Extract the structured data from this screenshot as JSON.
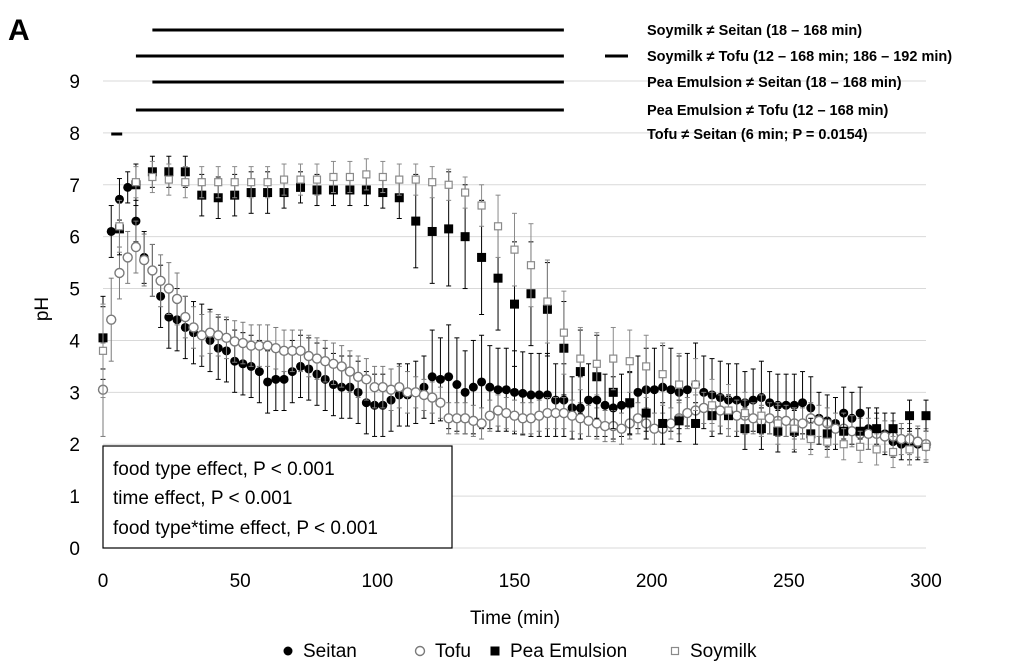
{
  "chart_data": {
    "type": "scatter",
    "panel_label": "A",
    "xlabel": "Time (min)",
    "ylabel": "pH",
    "xlim": [
      0,
      300
    ],
    "ylim": [
      0,
      9
    ],
    "x_ticks": [
      0,
      50,
      100,
      150,
      200,
      250,
      300
    ],
    "y_ticks": [
      0,
      1,
      2,
      3,
      4,
      5,
      6,
      7,
      8,
      9
    ],
    "grid": "horizontal",
    "legend_position": "bottom",
    "colors": {
      "seitan": "#000000",
      "tofu": "#7a7a7a",
      "pea": "#000000",
      "soymilk": "#8a8a8a",
      "grid": "#d9d9d9"
    },
    "series": [
      {
        "name": "Seitan",
        "marker": "filled-circle",
        "x": [
          0,
          3,
          6,
          9,
          12,
          15,
          18,
          21,
          24,
          27,
          30,
          33,
          36,
          39,
          42,
          45,
          48,
          51,
          54,
          57,
          60,
          63,
          66,
          69,
          72,
          75,
          78,
          81,
          84,
          87,
          90,
          93,
          96,
          99,
          102,
          105,
          108,
          111,
          114,
          117,
          120,
          123,
          126,
          129,
          132,
          135,
          138,
          141,
          144,
          147,
          150,
          153,
          156,
          159,
          162,
          165,
          168,
          171,
          174,
          177,
          180,
          183,
          186,
          189,
          192,
          195,
          198,
          201,
          204,
          207,
          210,
          213,
          216,
          219,
          222,
          225,
          228,
          231,
          234,
          237,
          240,
          243,
          246,
          249,
          252,
          255,
          258,
          261,
          264,
          267,
          270,
          273,
          276,
          279,
          282,
          285,
          288,
          291,
          294,
          297,
          300
        ],
        "y": [
          4.05,
          6.1,
          6.72,
          6.95,
          6.3,
          5.6,
          5.35,
          4.85,
          4.45,
          4.4,
          4.25,
          4.15,
          4.1,
          4.0,
          3.85,
          3.8,
          3.6,
          3.55,
          3.5,
          3.4,
          3.2,
          3.25,
          3.25,
          3.4,
          3.5,
          3.45,
          3.35,
          3.25,
          3.15,
          3.1,
          3.1,
          3.0,
          2.8,
          2.75,
          2.75,
          2.85,
          2.95,
          2.95,
          3.0,
          3.1,
          3.3,
          3.25,
          3.3,
          3.15,
          3.0,
          3.1,
          3.2,
          3.1,
          3.05,
          3.05,
          3.0,
          2.98,
          2.95,
          2.95,
          2.95,
          2.85,
          2.85,
          2.7,
          2.7,
          2.85,
          2.85,
          2.75,
          2.7,
          2.75,
          2.78,
          3.0,
          3.05,
          3.05,
          3.1,
          3.05,
          3.0,
          3.05,
          3.15,
          3.0,
          2.95,
          2.9,
          2.85,
          2.85,
          2.8,
          2.85,
          2.9,
          2.8,
          2.75,
          2.75,
          2.75,
          2.8,
          2.7,
          2.5,
          2.45,
          2.4,
          2.6,
          2.5,
          2.6,
          2.3,
          2.3,
          2.2,
          2.05,
          2.0,
          2.0,
          2.0,
          1.95
        ],
        "err": [
          0.6,
          0.5,
          0.4,
          0.3,
          0.4,
          0.5,
          0.5,
          0.6,
          0.6,
          0.6,
          0.6,
          0.6,
          0.6,
          0.6,
          0.6,
          0.6,
          0.6,
          0.6,
          0.6,
          0.6,
          0.6,
          0.6,
          0.6,
          0.6,
          0.6,
          0.6,
          0.6,
          0.6,
          0.6,
          0.6,
          0.6,
          0.6,
          0.6,
          0.6,
          0.6,
          0.6,
          0.6,
          0.6,
          0.6,
          0.6,
          0.9,
          0.8,
          1.0,
          0.9,
          0.8,
          0.9,
          0.9,
          0.8,
          0.8,
          0.8,
          0.8,
          0.8,
          0.8,
          0.8,
          0.8,
          0.7,
          0.7,
          0.6,
          0.6,
          0.7,
          0.7,
          0.6,
          0.6,
          0.6,
          0.6,
          0.7,
          0.8,
          0.8,
          0.8,
          0.8,
          0.7,
          0.7,
          0.8,
          0.7,
          0.7,
          0.7,
          0.7,
          0.7,
          0.6,
          0.6,
          0.7,
          0.6,
          0.6,
          0.6,
          0.6,
          0.6,
          0.6,
          0.5,
          0.5,
          0.5,
          0.5,
          0.5,
          0.5,
          0.4,
          0.4,
          0.4,
          0.3,
          0.3,
          0.3,
          0.3,
          0.3
        ]
      },
      {
        "name": "Tofu",
        "marker": "open-circle",
        "x": [
          0,
          3,
          6,
          9,
          12,
          15,
          18,
          21,
          24,
          27,
          30,
          33,
          36,
          39,
          42,
          45,
          48,
          51,
          54,
          57,
          60,
          63,
          66,
          69,
          72,
          75,
          78,
          81,
          84,
          87,
          90,
          93,
          96,
          99,
          102,
          105,
          108,
          111,
          114,
          117,
          120,
          123,
          126,
          129,
          132,
          135,
          138,
          141,
          144,
          147,
          150,
          153,
          156,
          159,
          162,
          165,
          168,
          171,
          174,
          177,
          180,
          183,
          186,
          189,
          192,
          195,
          198,
          201,
          204,
          207,
          210,
          213,
          216,
          219,
          222,
          225,
          228,
          231,
          234,
          237,
          240,
          243,
          246,
          249,
          252,
          255,
          258,
          261,
          264,
          267,
          270,
          273,
          276,
          279,
          282,
          285,
          288,
          291,
          294,
          297,
          300
        ],
        "y": [
          3.05,
          4.4,
          5.3,
          5.6,
          5.8,
          5.55,
          5.35,
          5.15,
          5.0,
          4.8,
          4.45,
          4.25,
          4.1,
          4.15,
          4.1,
          4.05,
          3.98,
          3.95,
          3.9,
          3.9,
          3.9,
          3.85,
          3.8,
          3.8,
          3.8,
          3.7,
          3.65,
          3.6,
          3.55,
          3.5,
          3.4,
          3.3,
          3.25,
          3.1,
          3.1,
          3.05,
          3.1,
          3.0,
          3.0,
          2.95,
          2.9,
          2.8,
          2.5,
          2.5,
          2.5,
          2.45,
          2.4,
          2.55,
          2.65,
          2.6,
          2.55,
          2.5,
          2.5,
          2.55,
          2.6,
          2.6,
          2.6,
          2.55,
          2.5,
          2.45,
          2.4,
          2.35,
          2.35,
          2.3,
          2.4,
          2.5,
          2.4,
          2.3,
          2.3,
          2.4,
          2.5,
          2.6,
          2.65,
          2.7,
          2.7,
          2.65,
          2.6,
          2.55,
          2.55,
          2.5,
          2.45,
          2.5,
          2.45,
          2.45,
          2.4,
          2.4,
          2.5,
          2.45,
          2.4,
          2.3,
          2.3,
          2.25,
          2.2,
          2.2,
          2.2,
          2.15,
          2.15,
          2.1,
          2.1,
          2.05,
          2.0
        ],
        "err": [
          0.9,
          0.8,
          0.5,
          0.5,
          0.5,
          0.5,
          0.5,
          0.5,
          0.5,
          0.5,
          0.4,
          0.4,
          0.4,
          0.4,
          0.4,
          0.4,
          0.4,
          0.4,
          0.4,
          0.4,
          0.4,
          0.4,
          0.4,
          0.4,
          0.4,
          0.4,
          0.4,
          0.4,
          0.4,
          0.4,
          0.4,
          0.4,
          0.4,
          0.4,
          0.4,
          0.4,
          0.4,
          0.4,
          0.3,
          0.3,
          0.3,
          0.3,
          0.3,
          0.3,
          0.3,
          0.3,
          0.3,
          0.3,
          0.3,
          0.3,
          0.3,
          0.3,
          0.3,
          0.3,
          0.3,
          0.3,
          0.3,
          0.3,
          0.3,
          0.3,
          0.3,
          0.3,
          0.3,
          0.3,
          0.3,
          0.3,
          0.3,
          0.3,
          0.3,
          0.3,
          0.3,
          0.3,
          0.3,
          0.3,
          0.3,
          0.3,
          0.3,
          0.3,
          0.3,
          0.3,
          0.3,
          0.3,
          0.3,
          0.3,
          0.3,
          0.3,
          0.3,
          0.3,
          0.3,
          0.3,
          0.3,
          0.3,
          0.3,
          0.3,
          0.3,
          0.3,
          0.3,
          0.3,
          0.3,
          0.3,
          0.3
        ]
      },
      {
        "name": "Pea Emulsion",
        "marker": "filled-square",
        "x": [
          0,
          6,
          12,
          18,
          24,
          30,
          36,
          42,
          48,
          54,
          60,
          66,
          72,
          78,
          84,
          90,
          96,
          102,
          108,
          114,
          120,
          126,
          132,
          138,
          144,
          150,
          156,
          162,
          168,
          174,
          180,
          186,
          192,
          198,
          204,
          210,
          216,
          222,
          228,
          234,
          240,
          246,
          252,
          258,
          264,
          270,
          276,
          282,
          288,
          294,
          300
        ],
        "y": [
          4.05,
          6.15,
          7.0,
          7.25,
          7.25,
          7.25,
          6.8,
          6.75,
          6.8,
          6.85,
          6.85,
          6.85,
          6.95,
          6.9,
          6.9,
          6.9,
          6.9,
          6.85,
          6.75,
          6.3,
          6.1,
          6.15,
          6.0,
          5.6,
          5.2,
          4.7,
          4.9,
          4.6,
          3.85,
          3.4,
          3.3,
          3.0,
          2.8,
          2.6,
          2.4,
          2.45,
          2.4,
          2.55,
          2.55,
          2.3,
          2.3,
          2.25,
          2.25,
          2.2,
          2.2,
          2.25,
          2.25,
          2.3,
          2.3,
          2.55,
          2.55
        ],
        "err": [
          0.8,
          0.5,
          0.4,
          0.3,
          0.3,
          0.3,
          0.4,
          0.4,
          0.4,
          0.4,
          0.4,
          0.3,
          0.3,
          0.3,
          0.3,
          0.3,
          0.3,
          0.3,
          0.4,
          0.9,
          1.0,
          1.1,
          1.0,
          1.1,
          1.0,
          1.2,
          1.0,
          0.9,
          0.9,
          0.8,
          0.8,
          0.7,
          0.6,
          0.5,
          0.4,
          0.4,
          0.4,
          0.4,
          0.4,
          0.4,
          0.4,
          0.4,
          0.4,
          0.3,
          0.3,
          0.3,
          0.3,
          0.3,
          0.3,
          0.3,
          0.3
        ]
      },
      {
        "name": "Soymilk",
        "marker": "open-square",
        "x": [
          0,
          6,
          12,
          18,
          24,
          30,
          36,
          42,
          48,
          54,
          60,
          66,
          72,
          78,
          84,
          90,
          96,
          102,
          108,
          114,
          120,
          126,
          132,
          138,
          144,
          150,
          156,
          162,
          168,
          174,
          180,
          186,
          192,
          198,
          204,
          210,
          216,
          222,
          228,
          234,
          240,
          246,
          252,
          258,
          264,
          270,
          276,
          282,
          288,
          294,
          300
        ],
        "y": [
          3.8,
          6.2,
          7.05,
          7.15,
          7.1,
          7.05,
          7.05,
          7.05,
          7.05,
          7.05,
          7.05,
          7.1,
          7.1,
          7.1,
          7.15,
          7.15,
          7.2,
          7.15,
          7.1,
          7.1,
          7.05,
          7.0,
          6.85,
          6.6,
          6.2,
          5.75,
          5.45,
          4.75,
          4.15,
          3.65,
          3.55,
          3.65,
          3.6,
          3.5,
          3.35,
          3.15,
          3.15,
          2.75,
          2.65,
          2.6,
          2.55,
          2.4,
          2.3,
          2.1,
          2.05,
          2.0,
          1.95,
          1.9,
          1.85,
          1.9,
          1.95
        ],
        "err": [
          0.9,
          0.5,
          0.3,
          0.3,
          0.3,
          0.3,
          0.3,
          0.3,
          0.3,
          0.3,
          0.3,
          0.3,
          0.3,
          0.3,
          0.3,
          0.3,
          0.3,
          0.3,
          0.3,
          0.3,
          0.3,
          0.3,
          0.3,
          0.4,
          0.6,
          0.7,
          0.8,
          0.8,
          0.8,
          0.6,
          0.6,
          0.6,
          0.6,
          0.6,
          0.6,
          0.6,
          0.5,
          0.5,
          0.5,
          0.4,
          0.4,
          0.4,
          0.4,
          0.3,
          0.3,
          0.3,
          0.3,
          0.3,
          0.3,
          0.3,
          0.3
        ]
      }
    ],
    "significance_bars": [
      {
        "label": "Soymilk ≠ Seitan (18 – 168 min)",
        "ranges": [
          [
            18,
            168
          ]
        ]
      },
      {
        "label": "Soymilk ≠ Tofu (12 – 168 min; 186 – 192 min)",
        "ranges": [
          [
            12,
            168
          ],
          [
            186,
            192
          ]
        ]
      },
      {
        "label": "Pea Emulsion ≠ Seitan (18 – 168 min)",
        "ranges": [
          [
            18,
            168
          ]
        ]
      },
      {
        "label": "Pea Emulsion ≠ Tofu (12 – 168 min)",
        "ranges": [
          [
            12,
            168
          ]
        ]
      },
      {
        "label": "Tofu ≠ Seitan (6 min; P = 0.0154)",
        "ranges": [
          [
            3,
            7
          ]
        ]
      }
    ],
    "stats_box": [
      "food type effect, P < 0.001",
      "time effect, P < 0.001",
      "food type*time effect, P < 0.001"
    ]
  }
}
